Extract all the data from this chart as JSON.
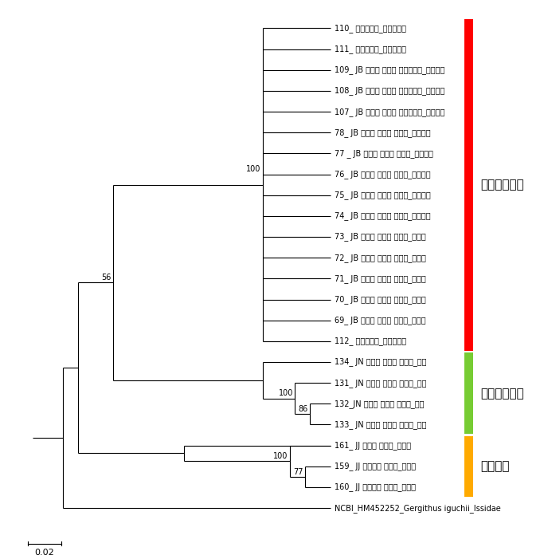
{
  "leaves": [
    "110_ 금산휴게소_아까시나무",
    "111_ 금산휴게소_아까시나무",
    "109_ JB 익산시 여산면 여산휴게소_때죽나무",
    "108_ JB 익산시 여산면 여산휴게소_때죽나무",
    "107_ JB 익산시 여산면 여산휴게소_때죽나무",
    "78_ JB 익산시 여산면 여산리_때죽나무",
    "77 _ JB 익산시 여산면 여산리_때죽나무",
    "76_ JB 익산시 여산면 여산리_때죽나무",
    "75_ JB 익산시 여산면 여산리_때죽나무",
    "74_ JB 익산시 여산면 여산리_때죽나무",
    "73_ JB 익산시 여산면 여산리_영산홍",
    "72_ JB 익산시 여산면 여산리_영산홍",
    "71_ JB 익산시 여산면 여산리_영산홍",
    "70_ JB 익산시 여산면 여산리_영산홍",
    "69_ JB 익산시 여산면 여산리_영산홍",
    "112_ 금산휴게소_아까시나무",
    "134_ JN 진도군 진도음 해찺리_억새",
    "131_ JN 진도군 진도음 해찺리_억새",
    "132_JN 진도군 진도음 해찺리_억새",
    "133_ JN 진도군 진도음 해찺리_억새",
    "161_ JJ 제주시 아라동_산달기",
    "159_ JJ 서귀포시 상효동_산달기",
    "160_ JJ 서귀포시 상효동_산달기",
    "NCBI_HM452252_Gergithus iguchii_Issidae"
  ],
  "group_colors": {
    "migung": "#ff0000",
    "bonghwa": "#77cc33",
    "sunnyo": "#ffaa00"
  },
  "group_labels": {
    "migung": "미국선녀벌레",
    "bonghwa": "봉화선녀벌레",
    "sunnyo": "선녀벌레"
  },
  "background_color": "#ffffff",
  "line_color": "#000000",
  "leaf_fontsize": 7.0,
  "group_label_fontsize": 11,
  "scale_value": "0.02"
}
